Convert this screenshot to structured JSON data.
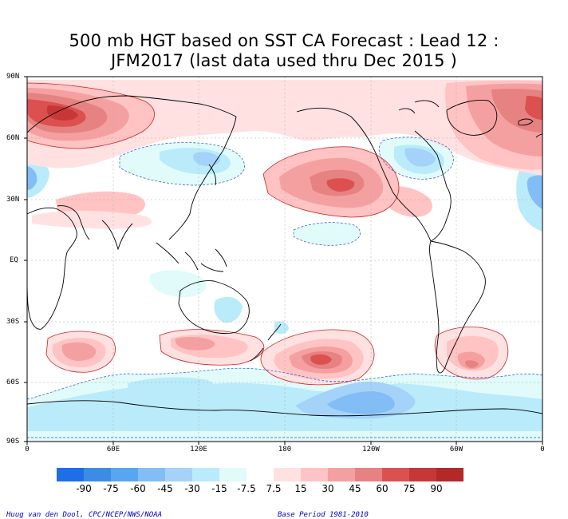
{
  "title_line1": "500 mb HGT based on SST CA Forecast : Lead 12 :",
  "title_line2": "JFM2017 (last data used thru Dec 2015 )",
  "lat_labels": [
    "90N",
    "60N",
    "30N",
    "EQ",
    "30S",
    "60S",
    "90S"
  ],
  "lon_labels": [
    "0",
    "60E",
    "120E",
    "180",
    "120W",
    "60W",
    "0"
  ],
  "legend": {
    "colors": [
      "#1e6ee8",
      "#3c8ce6",
      "#5aa5f0",
      "#82bef5",
      "#a5d2f8",
      "#b9ebfa",
      "#e1fafa",
      "#ffffff",
      "#ffe1e1",
      "#ffc3c3",
      "#f5a0a0",
      "#e68282",
      "#dc5050",
      "#c83737",
      "#b42828"
    ],
    "labels": [
      "-90",
      "-75",
      "-60",
      "-45",
      "-30",
      "-15",
      "-7.5",
      "7.5",
      "15",
      "30",
      "45",
      "60",
      "75",
      "90"
    ]
  },
  "credit_left": "Huug van den Dool, CPC/NCEP/NWS/NOAA",
  "credit_right": "Base Period 1981-2010"
}
